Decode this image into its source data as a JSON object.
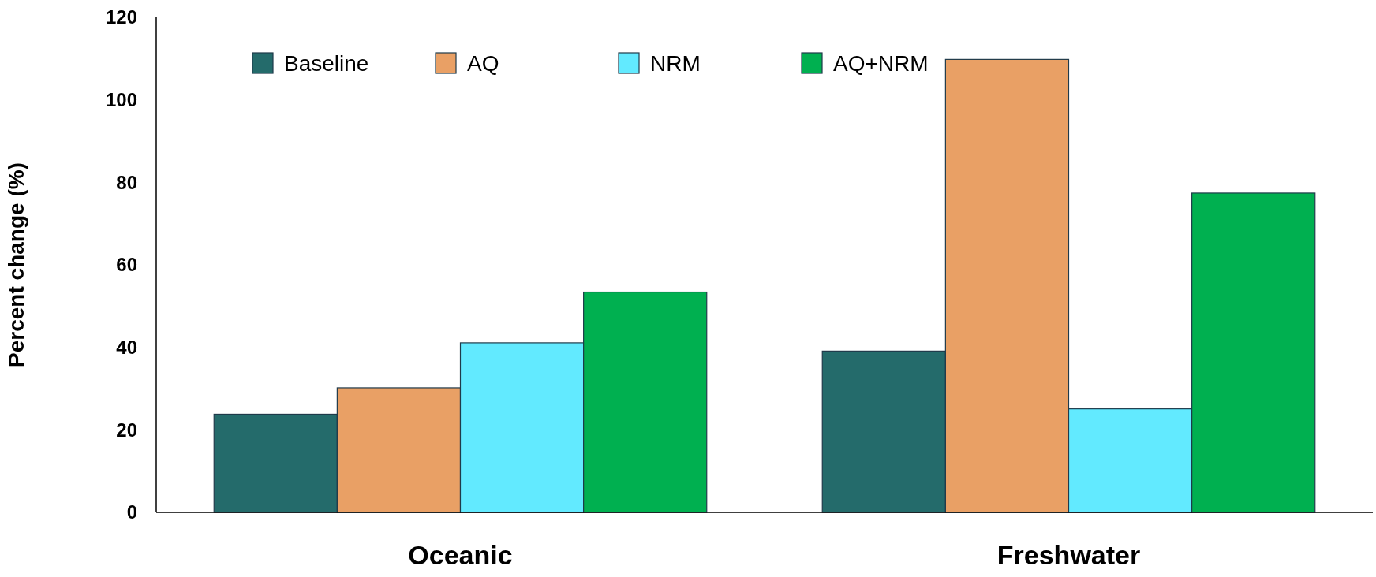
{
  "chart_data": {
    "type": "bar",
    "ylabel": "Percent change (%)",
    "categories": [
      "Oceanic",
      "Freshwater"
    ],
    "series": [
      {
        "name": "Baseline",
        "color": "#246b6b",
        "values": [
          23.8,
          39.1
        ]
      },
      {
        "name": "AQ",
        "color": "#e9a065",
        "values": [
          30.2,
          109.8
        ]
      },
      {
        "name": "NRM",
        "color": "#62eaff",
        "values": [
          41.1,
          25.1
        ]
      },
      {
        "name": "AQ+NRM",
        "color": "#00b050",
        "values": [
          53.4,
          77.4
        ]
      }
    ],
    "ylim": [
      0,
      120
    ],
    "yticks": [
      0,
      20,
      40,
      60,
      80,
      100,
      120
    ],
    "grid": false,
    "legend": "top left"
  }
}
